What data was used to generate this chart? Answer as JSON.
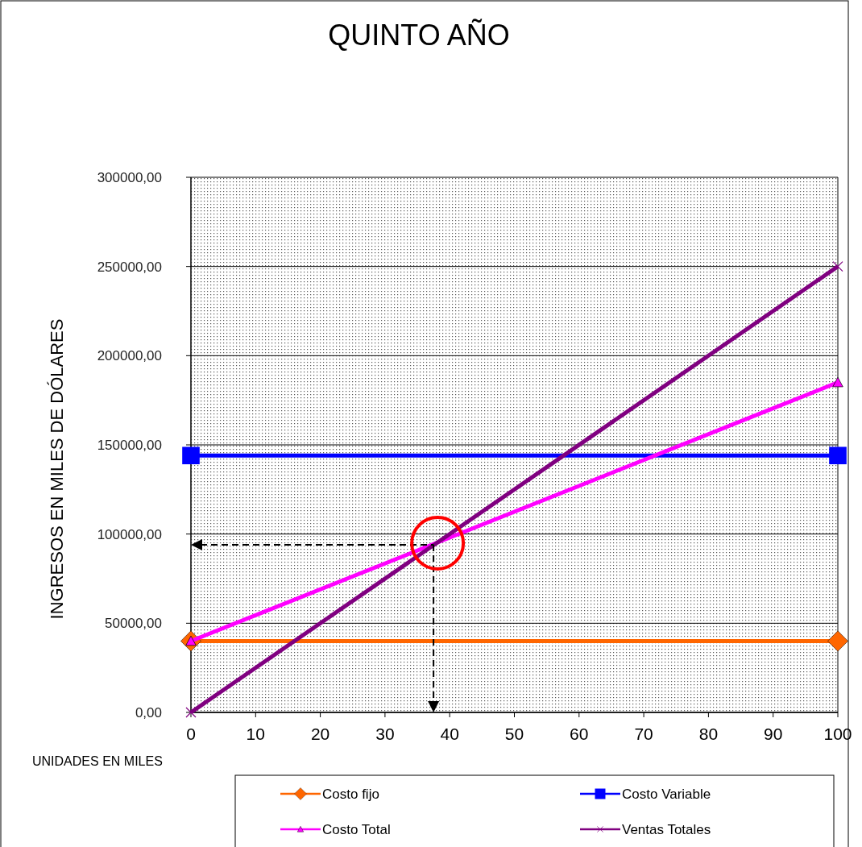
{
  "chart_data": {
    "type": "line",
    "title": "QUINTO AÑO",
    "xlabel": "UNIDADES EN MILES",
    "ylabel": "INGRESOS EN MILES DE DÓLARES",
    "x": [
      0,
      100
    ],
    "series": [
      {
        "name": "Costo fijo",
        "color": "#ff6600",
        "values": [
          40000,
          40000
        ],
        "marker": "diamond"
      },
      {
        "name": "Costo Variable",
        "color": "#0000ff",
        "values": [
          144000,
          144000
        ],
        "marker": "square"
      },
      {
        "name": "Costo Total",
        "color": "#ff00ff",
        "values": [
          40000,
          185000
        ],
        "marker": "triangle"
      },
      {
        "name": "Ventas Totales",
        "color": "#800080",
        "values": [
          0,
          250000
        ],
        "marker": "cross"
      }
    ],
    "xlim": [
      0,
      100
    ],
    "xticks": [
      0,
      10,
      20,
      30,
      40,
      50,
      60,
      70,
      80,
      90,
      100
    ],
    "ylim": [
      0,
      300000
    ],
    "yticks": [
      {
        "value": 0,
        "label": "0,00"
      },
      {
        "value": 50000,
        "label": "50000,00"
      },
      {
        "value": 100000,
        "label": "100000,00"
      },
      {
        "value": 150000,
        "label": "150000,00"
      },
      {
        "value": 200000,
        "label": "200000,00"
      },
      {
        "value": 250000,
        "label": "250000,00"
      },
      {
        "value": 300000,
        "label": "300000,00"
      }
    ],
    "ref_lines": [
      {
        "axis": "x",
        "value": 37.5,
        "color": "#000000",
        "line_style": "dashed"
      },
      {
        "axis": "y",
        "value": 94000,
        "color": "#000000",
        "line_style": "dashed"
      }
    ],
    "grid": "y",
    "legend": "bottom"
  }
}
